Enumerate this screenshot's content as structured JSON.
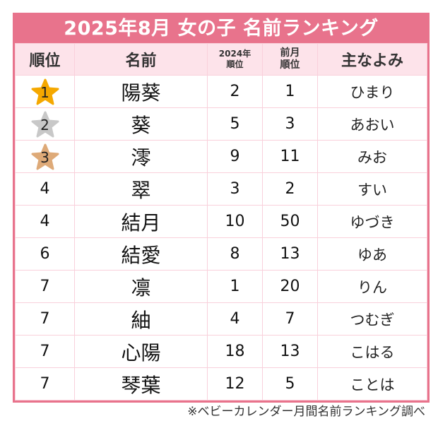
{
  "title": "2025年8月 女の子 名前ランキング",
  "headers": {
    "rank": "順位",
    "name": "名前",
    "rank_2024_line1": "2024年",
    "rank_2024_line2": "順位",
    "prev_month_line1": "前月",
    "prev_month_line2": "順位",
    "reading": "主なよみ"
  },
  "colors": {
    "accent": "#e8738c",
    "header_bg": "#fde3ea",
    "gold": "#f5a800",
    "silver": "#c8c8c8",
    "bronze": "#deaa78"
  },
  "rows": [
    {
      "rank": "1",
      "medal": "gold",
      "name": "陽葵",
      "rank_2024": "2",
      "prev_month": "1",
      "reading": "ひまり"
    },
    {
      "rank": "2",
      "medal": "silver",
      "name": "葵",
      "rank_2024": "5",
      "prev_month": "3",
      "reading": "あおい"
    },
    {
      "rank": "3",
      "medal": "bronze",
      "name": "澪",
      "rank_2024": "9",
      "prev_month": "11",
      "reading": "みお"
    },
    {
      "rank": "4",
      "medal": "",
      "name": "翠",
      "rank_2024": "3",
      "prev_month": "2",
      "reading": "すい"
    },
    {
      "rank": "4",
      "medal": "",
      "name": "結月",
      "rank_2024": "10",
      "prev_month": "50",
      "reading": "ゆづき"
    },
    {
      "rank": "6",
      "medal": "",
      "name": "結愛",
      "rank_2024": "8",
      "prev_month": "13",
      "reading": "ゆあ"
    },
    {
      "rank": "7",
      "medal": "",
      "name": "凛",
      "rank_2024": "1",
      "prev_month": "20",
      "reading": "りん"
    },
    {
      "rank": "7",
      "medal": "",
      "name": "紬",
      "rank_2024": "4",
      "prev_month": "7",
      "reading": "つむぎ"
    },
    {
      "rank": "7",
      "medal": "",
      "name": "心陽",
      "rank_2024": "18",
      "prev_month": "13",
      "reading": "こはる"
    },
    {
      "rank": "7",
      "medal": "",
      "name": "琴葉",
      "rank_2024": "12",
      "prev_month": "5",
      "reading": "ことは"
    }
  ],
  "footer": "※ベビーカレンダー月間名前ランキング調べ"
}
